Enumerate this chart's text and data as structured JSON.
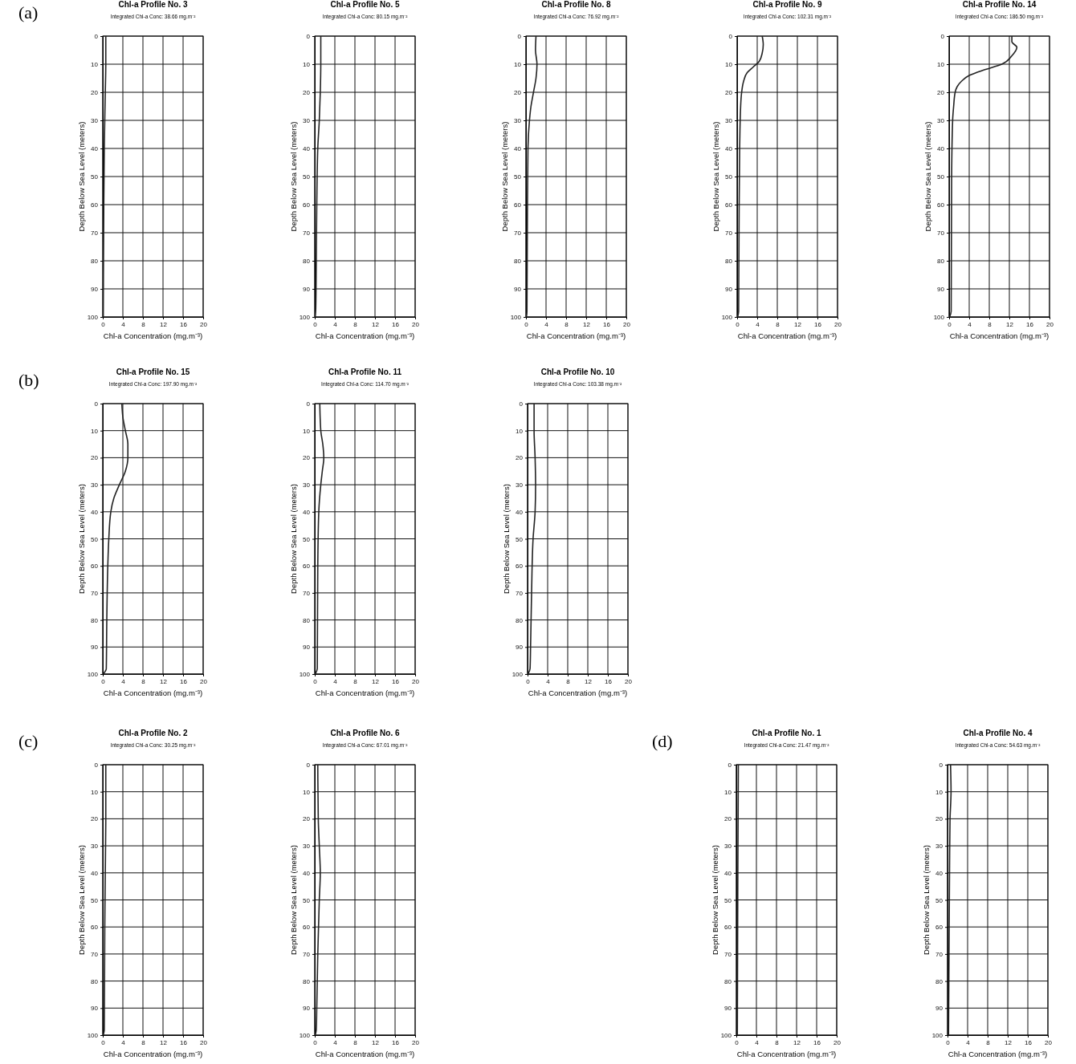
{
  "chart_data": [
    {
      "type": "line",
      "title": "Chl-a Profile No. 3",
      "subtitle": "Integrated Chl-a Conc: 38.66 mg.m⁻²",
      "xlabel": "Chl-a Concentration (mg.m⁻³)",
      "ylabel": "Depth Below Sea Level (meters)",
      "annotations": [
        "(a)"
      ],
      "xlim": [
        0,
        20
      ],
      "xticks": [
        0,
        4,
        8,
        12,
        16,
        20
      ],
      "ylim": [
        100,
        0
      ],
      "yticks": [
        0,
        10,
        20,
        30,
        40,
        50,
        60,
        70,
        80,
        90,
        100
      ],
      "grid": true,
      "series": [
        {
          "color": "#222222",
          "x": [
            0.6,
            0.6,
            0.5,
            0.3,
            0.2,
            0.1
          ],
          "values": [
            0,
            10,
            20,
            40,
            60,
            100
          ]
        }
      ]
    },
    {
      "type": "line",
      "title": "Chl-a Profile No. 5",
      "subtitle": "Integrated Chl-a Conc: 80.15 mg.m⁻²",
      "xlabel": "Chl-a Concentration (mg.m⁻³)",
      "ylabel": "Depth Below Sea Level (meters)",
      "xlim": [
        0,
        20
      ],
      "xticks": [
        0,
        4,
        8,
        12,
        16,
        20
      ],
      "ylim": [
        100,
        0
      ],
      "yticks": [
        0,
        10,
        20,
        30,
        40,
        50,
        60,
        70,
        80,
        90,
        100
      ],
      "grid": true,
      "series": [
        {
          "color": "#222222",
          "x": [
            1.2,
            1.2,
            1.1,
            0.9,
            0.6,
            0.4,
            0.3,
            0.2,
            0.1
          ],
          "values": [
            0,
            10,
            20,
            30,
            40,
            60,
            80,
            97,
            100
          ]
        }
      ]
    },
    {
      "type": "line",
      "title": "Chl-a Profile No. 8",
      "subtitle": "Integrated Chl-a Conc: 76.92 mg.m⁻²",
      "xlabel": "Chl-a Concentration (mg.m⁻³)",
      "ylabel": "Depth Below Sea Level (meters)",
      "xlim": [
        0,
        20
      ],
      "xticks": [
        0,
        4,
        8,
        12,
        16,
        20
      ],
      "ylim": [
        100,
        0
      ],
      "yticks": [
        0,
        10,
        20,
        30,
        40,
        50,
        60,
        70,
        80,
        90,
        100
      ],
      "grid": true,
      "series": [
        {
          "color": "#222222",
          "x": [
            2.0,
            1.9,
            2.2,
            2.0,
            1.5,
            1.0,
            0.7,
            0.4,
            0.3,
            0.2,
            0.1
          ],
          "values": [
            0,
            5,
            10,
            15,
            20,
            25,
            30,
            40,
            60,
            98,
            100
          ]
        }
      ]
    },
    {
      "type": "line",
      "title": "Chl-a Profile No. 9",
      "subtitle": "Integrated Chl-a Conc: 102.31 mg.m⁻²",
      "xlabel": "Chl-a Concentration (mg.m⁻³)",
      "ylabel": "Depth Below Sea Level (meters)",
      "xlim": [
        0,
        20
      ],
      "xticks": [
        0,
        4,
        8,
        12,
        16,
        20
      ],
      "ylim": [
        100,
        0
      ],
      "yticks": [
        0,
        10,
        20,
        30,
        40,
        50,
        60,
        70,
        80,
        90,
        100
      ],
      "grid": true,
      "series": [
        {
          "color": "#222222",
          "x": [
            5.0,
            5.2,
            5.0,
            4.4,
            3.2,
            2.0,
            1.3,
            0.9,
            0.7,
            0.5,
            0.4,
            0.3,
            0.1
          ],
          "values": [
            0,
            3,
            6,
            9,
            11,
            13,
            16,
            20,
            25,
            40,
            60,
            98,
            100
          ]
        }
      ]
    },
    {
      "type": "line",
      "title": "Chl-a Profile No. 14",
      "subtitle": "Integrated Chl-a Conc: 186.50 mg.m⁻²",
      "xlabel": "Chl-a Concentration (mg.m⁻³)",
      "ylabel": "Depth Below Sea Level (meters)",
      "xlim": [
        0,
        20
      ],
      "xticks": [
        0,
        4,
        8,
        12,
        16,
        20
      ],
      "ylim": [
        100,
        0
      ],
      "yticks": [
        0,
        10,
        20,
        30,
        40,
        50,
        60,
        70,
        80,
        90,
        100
      ],
      "grid": true,
      "series": [
        {
          "color": "#222222",
          "x": [
            12.5,
            12.5,
            13.5,
            12.5,
            10.5,
            7,
            4,
            2.5,
            1.6,
            1.2,
            0.9,
            0.7,
            0.5,
            0.4,
            0.1
          ],
          "values": [
            0,
            2,
            4,
            7,
            10,
            12,
            14,
            16,
            18,
            20,
            25,
            30,
            50,
            98,
            100
          ]
        }
      ]
    },
    {
      "type": "line",
      "title": "Chl-a Profile No. 15",
      "subtitle": "Integrated Chl-a Conc: 197.90 mg.m⁻²",
      "xlabel": "Chl-a Concentration (mg.m⁻³)",
      "ylabel": "Depth Below Sea Level (meters)",
      "annotations": [
        "(b)"
      ],
      "xlim": [
        0,
        20
      ],
      "xticks": [
        0,
        4,
        8,
        12,
        16,
        20
      ],
      "ylim": [
        100,
        0
      ],
      "yticks": [
        0,
        10,
        20,
        30,
        40,
        50,
        60,
        70,
        80,
        90,
        100
      ],
      "grid": true,
      "series": [
        {
          "color": "#222222",
          "x": [
            3.8,
            4.0,
            4.5,
            5.0,
            5.0,
            4.5,
            3.3,
            2.2,
            1.6,
            1.2,
            1.0,
            0.8,
            0.7,
            0.1
          ],
          "values": [
            0,
            5,
            10,
            15,
            20,
            25,
            30,
            35,
            40,
            50,
            60,
            80,
            98,
            100
          ]
        }
      ]
    },
    {
      "type": "line",
      "title": "Chl-a Profile No. 11",
      "subtitle": "Integrated Chl-a Conc: 114.70 mg.m⁻²",
      "xlabel": "Chl-a Concentration (mg.m⁻³)",
      "ylabel": "Depth Below Sea Level (meters)",
      "xlim": [
        0,
        20
      ],
      "xticks": [
        0,
        4,
        8,
        12,
        16,
        20
      ],
      "ylim": [
        100,
        0
      ],
      "yticks": [
        0,
        10,
        20,
        30,
        40,
        50,
        60,
        70,
        80,
        90,
        100
      ],
      "grid": true,
      "series": [
        {
          "color": "#222222",
          "x": [
            1.0,
            1.2,
            1.6,
            1.8,
            1.5,
            1.2,
            0.8,
            0.6,
            0.5,
            0.1
          ],
          "values": [
            0,
            10,
            15,
            20,
            25,
            30,
            40,
            60,
            98,
            100
          ]
        }
      ]
    },
    {
      "type": "line",
      "title": "Chl-a Profile No. 10",
      "subtitle": "Integrated Chl-a Conc: 103.38 mg.m⁻²",
      "xlabel": "Chl-a Concentration (mg.m⁻³)",
      "ylabel": "Depth Below Sea Level (meters)",
      "xlim": [
        0,
        20
      ],
      "xticks": [
        0,
        4,
        8,
        12,
        16,
        20
      ],
      "ylim": [
        100,
        0
      ],
      "yticks": [
        0,
        10,
        20,
        30,
        40,
        50,
        60,
        70,
        80,
        90,
        100
      ],
      "grid": true,
      "series": [
        {
          "color": "#222222",
          "x": [
            1.3,
            1.3,
            1.5,
            1.6,
            1.5,
            1.1,
            0.8,
            0.6,
            0.5,
            0.1
          ],
          "values": [
            0,
            10,
            20,
            30,
            40,
            50,
            70,
            90,
            98,
            100
          ]
        }
      ]
    },
    {
      "type": "line",
      "title": "Chl-a Profile No. 2",
      "subtitle": "Integrated Chl-a Conc: 30.25 mg.m⁻²",
      "xlabel": "Chl-a Concentration (mg.m⁻³)",
      "ylabel": "Depth Below Sea Level (meters)",
      "annotations": [
        "(c)"
      ],
      "xlim": [
        0,
        20
      ],
      "xticks": [
        0,
        4,
        8,
        12,
        16,
        20
      ],
      "ylim": [
        100,
        0
      ],
      "yticks": [
        0,
        10,
        20,
        30,
        40,
        50,
        60,
        70,
        80,
        90,
        100
      ],
      "grid": true,
      "series": [
        {
          "color": "#222222",
          "x": [
            0.6,
            0.6,
            0.5,
            0.4,
            0.3,
            0.1
          ],
          "values": [
            0,
            20,
            40,
            60,
            98,
            100
          ]
        }
      ]
    },
    {
      "type": "line",
      "title": "Chl-a Profile No. 6",
      "subtitle": "Integrated Chl-a Conc: 67.01 mg.m⁻²",
      "xlabel": "Chl-a Concentration (mg.m⁻³)",
      "ylabel": "Depth Below Sea Level (meters)",
      "xlim": [
        0,
        20
      ],
      "xticks": [
        0,
        4,
        8,
        12,
        16,
        20
      ],
      "ylim": [
        100,
        0
      ],
      "yticks": [
        0,
        10,
        20,
        30,
        40,
        50,
        60,
        70,
        80,
        90,
        100
      ],
      "grid": true,
      "series": [
        {
          "color": "#222222",
          "x": [
            0.6,
            0.7,
            0.9,
            1.1,
            0.9,
            0.6,
            0.4,
            0.3,
            0.1
          ],
          "values": [
            0,
            20,
            30,
            40,
            50,
            70,
            90,
            98,
            100
          ]
        }
      ]
    },
    {
      "type": "line",
      "title": "Chl-a Profile No. 1",
      "subtitle": "Integrated Chl-a Conc: 21.47 mg.m⁻²",
      "xlabel": "Chl-a Concentration (mg.m⁻³)",
      "ylabel": "Depth Below Sea Level (meters)",
      "annotations": [
        "(d)"
      ],
      "xlim": [
        0,
        20
      ],
      "xticks": [
        0,
        4,
        8,
        12,
        16,
        20
      ],
      "ylim": [
        100,
        0
      ],
      "yticks": [
        0,
        10,
        20,
        30,
        40,
        50,
        60,
        70,
        80,
        90,
        100
      ],
      "grid": true,
      "series": [
        {
          "color": "#222222",
          "x": [
            0.4,
            0.3,
            0.2
          ],
          "values": [
            0,
            40,
            100
          ]
        }
      ]
    },
    {
      "type": "line",
      "title": "Chl-a Profile No. 4",
      "subtitle": "Integrated Chl-a Conc: 54.63 mg.m⁻²",
      "xlabel": "Chl-a Concentration (mg.m⁻³)",
      "ylabel": "Depth Below Sea Level (meters)",
      "xlim": [
        0,
        20
      ],
      "xticks": [
        0,
        4,
        8,
        12,
        16,
        20
      ],
      "ylim": [
        100,
        0
      ],
      "yticks": [
        0,
        10,
        20,
        30,
        40,
        50,
        60,
        70,
        80,
        90,
        100
      ],
      "grid": true,
      "series": [
        {
          "color": "#222222",
          "x": [
            0.6,
            0.7,
            0.5,
            0.4,
            0.3,
            0.2
          ],
          "values": [
            0,
            10,
            20,
            40,
            70,
            100
          ]
        }
      ]
    }
  ]
}
